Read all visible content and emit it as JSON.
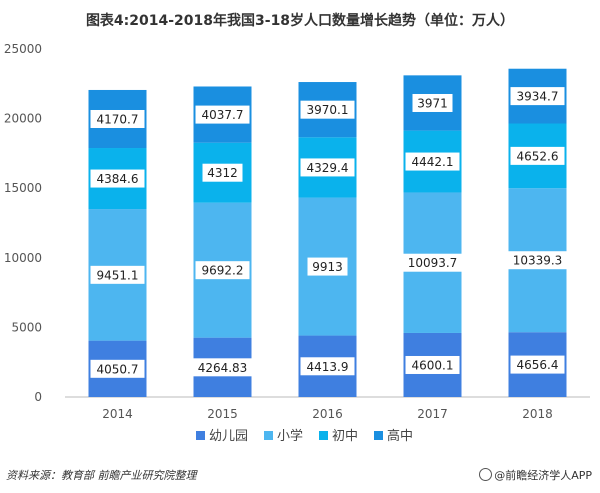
{
  "chart_data": {
    "type": "bar",
    "stacked": true,
    "title": "图表4:2014-2018年我国3-18岁人口数量增长趋势（单位：万人）",
    "categories": [
      "2014",
      "2015",
      "2016",
      "2017",
      "2018"
    ],
    "series": [
      {
        "name": "幼儿园",
        "color": "#3f7fe0",
        "values": [
          4050.7,
          4264.83,
          4413.9,
          4600.1,
          4656.4
        ]
      },
      {
        "name": "小学",
        "color": "#4db6f0",
        "values": [
          9451.1,
          9692.2,
          9913,
          10093.7,
          10339.3
        ]
      },
      {
        "name": "初中",
        "color": "#0ab2ec",
        "values": [
          4384.6,
          4312,
          4329.4,
          4442.1,
          4652.6
        ]
      },
      {
        "name": "高中",
        "color": "#1a8fe0",
        "values": [
          4170.7,
          4037.7,
          3970.1,
          3971,
          3934.7
        ]
      }
    ],
    "ylim": [
      0,
      25000
    ],
    "yticks": [
      0,
      5000,
      10000,
      15000,
      20000,
      25000
    ],
    "legend_position": "bottom",
    "grid": false
  },
  "footer": {
    "source": "资料来源：教育部 前瞻产业研究院整理",
    "credit": "@前瞻经济学人APP"
  }
}
